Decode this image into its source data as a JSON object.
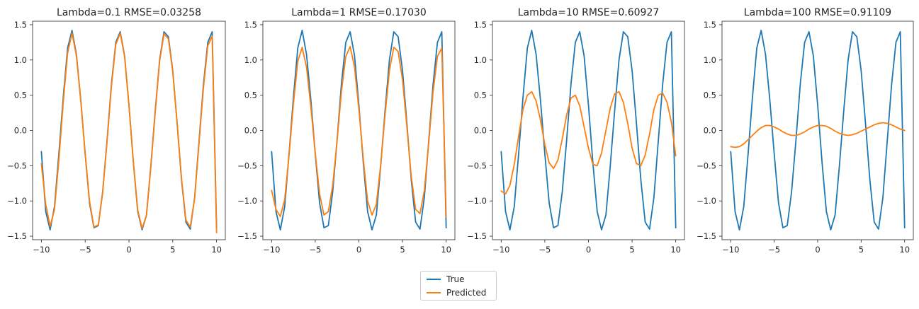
{
  "chart_data": [
    {
      "type": "line",
      "title": "Lambda=0.1 RMSE=0.03258",
      "xlabel": "",
      "ylabel": "",
      "xlim": [
        -11,
        11
      ],
      "ylim": [
        -1.55,
        1.55
      ],
      "xticks": [
        -10,
        -5,
        0,
        5,
        10
      ],
      "yticks": [
        -1.5,
        -1.0,
        -0.5,
        0.0,
        0.5,
        1.0,
        1.5
      ],
      "xtick_labels": [
        "−10",
        "−5",
        "0",
        "5",
        "10"
      ],
      "ytick_labels": [
        "−1.5",
        "−1.0",
        "−0.5",
        "0.0",
        "0.5",
        "1.0",
        "1.5"
      ],
      "grid": false,
      "series": [
        {
          "name": "True",
          "color": "#1f77b4",
          "x": [
            -10,
            -9.5,
            -9,
            -8.5,
            -8,
            -7.5,
            -7,
            -6.5,
            -6,
            -5.5,
            -5,
            -4.5,
            -4,
            -3.5,
            -3,
            -2.5,
            -2,
            -1.5,
            -1,
            -0.5,
            0,
            0.5,
            1,
            1.5,
            2,
            2.5,
            3,
            3.5,
            4,
            4.5,
            5,
            5.5,
            6,
            6.5,
            7,
            7.5,
            8,
            8.5,
            9,
            9.5,
            10
          ],
          "y": [
            -0.3,
            -1.15,
            -1.41,
            -1.08,
            -0.33,
            0.47,
            1.17,
            1.42,
            1.08,
            0.43,
            -0.33,
            -1.03,
            -1.38,
            -1.35,
            -0.87,
            -0.14,
            0.66,
            1.25,
            1.4,
            1.06,
            0.36,
            -0.45,
            -1.15,
            -1.41,
            -1.2,
            -0.5,
            0.28,
            1.0,
            1.4,
            1.33,
            0.85,
            0.1,
            -0.7,
            -1.3,
            -1.4,
            -0.95,
            -0.15,
            0.65,
            1.25,
            1.4,
            -1.38
          ]
        },
        {
          "name": "Predicted",
          "color": "#ff7f0e",
          "x": [
            -10,
            -9.5,
            -9,
            -8.5,
            -8,
            -7.5,
            -7,
            -6.5,
            -6,
            -5.5,
            -5,
            -4.5,
            -4,
            -3.5,
            -3,
            -2.5,
            -2,
            -1.5,
            -1,
            -0.5,
            0,
            0.5,
            1,
            1.5,
            2,
            2.5,
            3,
            3.5,
            4,
            4.5,
            5,
            5.5,
            6,
            6.5,
            7,
            7.5,
            8,
            8.5,
            9,
            9.5,
            10
          ],
          "y": [
            -0.47,
            -1.05,
            -1.36,
            -1.12,
            -0.42,
            0.4,
            1.1,
            1.38,
            1.06,
            0.42,
            -0.32,
            -1.0,
            -1.37,
            -1.34,
            -0.88,
            -0.16,
            0.63,
            1.22,
            1.38,
            1.05,
            0.36,
            -0.44,
            -1.13,
            -1.39,
            -1.2,
            -0.52,
            0.26,
            0.98,
            1.37,
            1.3,
            0.83,
            0.1,
            -0.68,
            -1.27,
            -1.37,
            -0.96,
            -0.18,
            0.6,
            1.2,
            1.34,
            -1.45
          ]
        }
      ]
    },
    {
      "type": "line",
      "title": "Lambda=1 RMSE=0.17030",
      "xlabel": "",
      "ylabel": "",
      "xlim": [
        -11,
        11
      ],
      "ylim": [
        -1.55,
        1.55
      ],
      "xticks": [
        -10,
        -5,
        0,
        5,
        10
      ],
      "yticks": [
        -1.5,
        -1.0,
        -0.5,
        0.0,
        0.5,
        1.0,
        1.5
      ],
      "xtick_labels": [
        "−10",
        "−5",
        "0",
        "5",
        "10"
      ],
      "ytick_labels": [
        "−1.5",
        "−1.0",
        "−0.5",
        "0.0",
        "0.5",
        "1.0",
        "1.5"
      ],
      "grid": false,
      "series": [
        {
          "name": "True",
          "color": "#1f77b4",
          "x": [
            -10,
            -9.5,
            -9,
            -8.5,
            -8,
            -7.5,
            -7,
            -6.5,
            -6,
            -5.5,
            -5,
            -4.5,
            -4,
            -3.5,
            -3,
            -2.5,
            -2,
            -1.5,
            -1,
            -0.5,
            0,
            0.5,
            1,
            1.5,
            2,
            2.5,
            3,
            3.5,
            4,
            4.5,
            5,
            5.5,
            6,
            6.5,
            7,
            7.5,
            8,
            8.5,
            9,
            9.5,
            10
          ],
          "y": [
            -0.3,
            -1.15,
            -1.41,
            -1.08,
            -0.33,
            0.47,
            1.17,
            1.42,
            1.08,
            0.43,
            -0.33,
            -1.03,
            -1.38,
            -1.35,
            -0.87,
            -0.14,
            0.66,
            1.25,
            1.4,
            1.06,
            0.36,
            -0.45,
            -1.15,
            -1.41,
            -1.2,
            -0.5,
            0.28,
            1.0,
            1.4,
            1.33,
            0.85,
            0.1,
            -0.7,
            -1.3,
            -1.4,
            -0.95,
            -0.15,
            0.65,
            1.25,
            1.4,
            -1.38
          ]
        },
        {
          "name": "Predicted",
          "color": "#ff7f0e",
          "x": [
            -10,
            -9.5,
            -9,
            -8.5,
            -8,
            -7.5,
            -7,
            -6.5,
            -6,
            -5.5,
            -5,
            -4.5,
            -4,
            -3.5,
            -3,
            -2.5,
            -2,
            -1.5,
            -1,
            -0.5,
            0,
            0.5,
            1,
            1.5,
            2,
            2.5,
            3,
            3.5,
            4,
            4.5,
            5,
            5.5,
            6,
            6.5,
            7,
            7.5,
            8,
            8.5,
            9,
            9.5,
            10
          ],
          "y": [
            -0.85,
            -1.12,
            -1.22,
            -0.98,
            -0.35,
            0.38,
            0.98,
            1.18,
            0.9,
            0.33,
            -0.32,
            -0.9,
            -1.2,
            -1.15,
            -0.78,
            -0.15,
            0.55,
            1.05,
            1.19,
            0.9,
            0.3,
            -0.4,
            -1.0,
            -1.2,
            -1.05,
            -0.48,
            0.22,
            0.85,
            1.18,
            1.12,
            0.72,
            0.05,
            -0.65,
            -1.12,
            -1.18,
            -0.85,
            -0.18,
            0.55,
            1.05,
            1.17,
            -1.23
          ]
        }
      ]
    },
    {
      "type": "line",
      "title": "Lambda=10 RMSE=0.60927",
      "xlabel": "",
      "ylabel": "",
      "xlim": [
        -11,
        11
      ],
      "ylim": [
        -1.55,
        1.55
      ],
      "xticks": [
        -10,
        -5,
        0,
        5,
        10
      ],
      "yticks": [
        -1.5,
        -1.0,
        -0.5,
        0.0,
        0.5,
        1.0,
        1.5
      ],
      "xtick_labels": [
        "−10",
        "−5",
        "0",
        "5",
        "10"
      ],
      "ytick_labels": [
        "−1.5",
        "−1.0",
        "−0.5",
        "0.0",
        "0.5",
        "1.0",
        "1.5"
      ],
      "grid": false,
      "series": [
        {
          "name": "True",
          "color": "#1f77b4",
          "x": [
            -10,
            -9.5,
            -9,
            -8.5,
            -8,
            -7.5,
            -7,
            -6.5,
            -6,
            -5.5,
            -5,
            -4.5,
            -4,
            -3.5,
            -3,
            -2.5,
            -2,
            -1.5,
            -1,
            -0.5,
            0,
            0.5,
            1,
            1.5,
            2,
            2.5,
            3,
            3.5,
            4,
            4.5,
            5,
            5.5,
            6,
            6.5,
            7,
            7.5,
            8,
            8.5,
            9,
            9.5,
            10
          ],
          "y": [
            -0.3,
            -1.15,
            -1.41,
            -1.08,
            -0.33,
            0.47,
            1.17,
            1.42,
            1.08,
            0.43,
            -0.33,
            -1.03,
            -1.38,
            -1.35,
            -0.87,
            -0.14,
            0.66,
            1.25,
            1.4,
            1.06,
            0.36,
            -0.45,
            -1.15,
            -1.41,
            -1.2,
            -0.5,
            0.28,
            1.0,
            1.4,
            1.33,
            0.85,
            0.1,
            -0.7,
            -1.3,
            -1.4,
            -0.95,
            -0.15,
            0.65,
            1.25,
            1.4,
            -1.38
          ]
        },
        {
          "name": "Predicted",
          "color": "#ff7f0e",
          "x": [
            -10,
            -9.5,
            -9,
            -8.5,
            -8,
            -7.5,
            -7,
            -6.5,
            -6,
            -5.5,
            -5,
            -4.5,
            -4,
            -3.5,
            -3,
            -2.5,
            -2,
            -1.5,
            -1,
            -0.5,
            0,
            0.5,
            1,
            1.5,
            2,
            2.5,
            3,
            3.5,
            4,
            4.5,
            5,
            5.5,
            6,
            6.5,
            7,
            7.5,
            8,
            8.5,
            9,
            9.5,
            10
          ],
          "y": [
            -0.86,
            -0.9,
            -0.78,
            -0.48,
            -0.08,
            0.3,
            0.5,
            0.55,
            0.42,
            0.15,
            -0.2,
            -0.46,
            -0.54,
            -0.42,
            -0.12,
            0.22,
            0.46,
            0.5,
            0.35,
            0.05,
            -0.25,
            -0.48,
            -0.5,
            -0.32,
            0.0,
            0.32,
            0.52,
            0.55,
            0.4,
            0.1,
            -0.25,
            -0.47,
            -0.5,
            -0.35,
            -0.05,
            0.3,
            0.5,
            0.53,
            0.4,
            0.12,
            -0.36
          ]
        }
      ]
    },
    {
      "type": "line",
      "title": "Lambda=100 RMSE=0.91109",
      "xlabel": "",
      "ylabel": "",
      "xlim": [
        -11,
        11
      ],
      "ylim": [
        -1.55,
        1.55
      ],
      "xticks": [
        -10,
        -5,
        0,
        5,
        10
      ],
      "yticks": [
        -1.5,
        -1.0,
        -0.5,
        0.0,
        0.5,
        1.0,
        1.5
      ],
      "xtick_labels": [
        "−10",
        "−5",
        "0",
        "5",
        "10"
      ],
      "ytick_labels": [
        "−1.5",
        "−1.0",
        "−0.5",
        "0.0",
        "0.5",
        "1.0",
        "1.5"
      ],
      "grid": false,
      "series": [
        {
          "name": "True",
          "color": "#1f77b4",
          "x": [
            -10,
            -9.5,
            -9,
            -8.5,
            -8,
            -7.5,
            -7,
            -6.5,
            -6,
            -5.5,
            -5,
            -4.5,
            -4,
            -3.5,
            -3,
            -2.5,
            -2,
            -1.5,
            -1,
            -0.5,
            0,
            0.5,
            1,
            1.5,
            2,
            2.5,
            3,
            3.5,
            4,
            4.5,
            5,
            5.5,
            6,
            6.5,
            7,
            7.5,
            8,
            8.5,
            9,
            9.5,
            10
          ],
          "y": [
            -0.3,
            -1.15,
            -1.41,
            -1.08,
            -0.33,
            0.47,
            1.17,
            1.42,
            1.08,
            0.43,
            -0.33,
            -1.03,
            -1.38,
            -1.35,
            -0.87,
            -0.14,
            0.66,
            1.25,
            1.4,
            1.06,
            0.36,
            -0.45,
            -1.15,
            -1.41,
            -1.2,
            -0.5,
            0.28,
            1.0,
            1.4,
            1.33,
            0.85,
            0.1,
            -0.7,
            -1.3,
            -1.4,
            -0.95,
            -0.15,
            0.65,
            1.25,
            1.4,
            -1.38
          ]
        },
        {
          "name": "Predicted",
          "color": "#ff7f0e",
          "x": [
            -10,
            -9.5,
            -9,
            -8.5,
            -8,
            -7.5,
            -7,
            -6.5,
            -6,
            -5.5,
            -5,
            -4.5,
            -4,
            -3.5,
            -3,
            -2.5,
            -2,
            -1.5,
            -1,
            -0.5,
            0,
            0.5,
            1,
            1.5,
            2,
            2.5,
            3,
            3.5,
            4,
            4.5,
            5,
            5.5,
            6,
            6.5,
            7,
            7.5,
            8,
            8.5,
            9,
            9.5,
            10
          ],
          "y": [
            -0.23,
            -0.24,
            -0.23,
            -0.19,
            -0.13,
            -0.07,
            -0.01,
            0.04,
            0.07,
            0.07,
            0.05,
            0.02,
            -0.02,
            -0.05,
            -0.07,
            -0.07,
            -0.05,
            -0.02,
            0.02,
            0.05,
            0.07,
            0.07,
            0.06,
            0.03,
            -0.01,
            -0.04,
            -0.06,
            -0.07,
            -0.06,
            -0.04,
            -0.01,
            0.02,
            0.05,
            0.08,
            0.1,
            0.11,
            0.1,
            0.08,
            0.05,
            0.02,
            0.0
          ]
        }
      ]
    }
  ],
  "legend": {
    "placement": "bottom-center",
    "entries": [
      {
        "label": "True",
        "color": "#1f77b4"
      },
      {
        "label": "Predicted",
        "color": "#ff7f0e"
      }
    ]
  }
}
